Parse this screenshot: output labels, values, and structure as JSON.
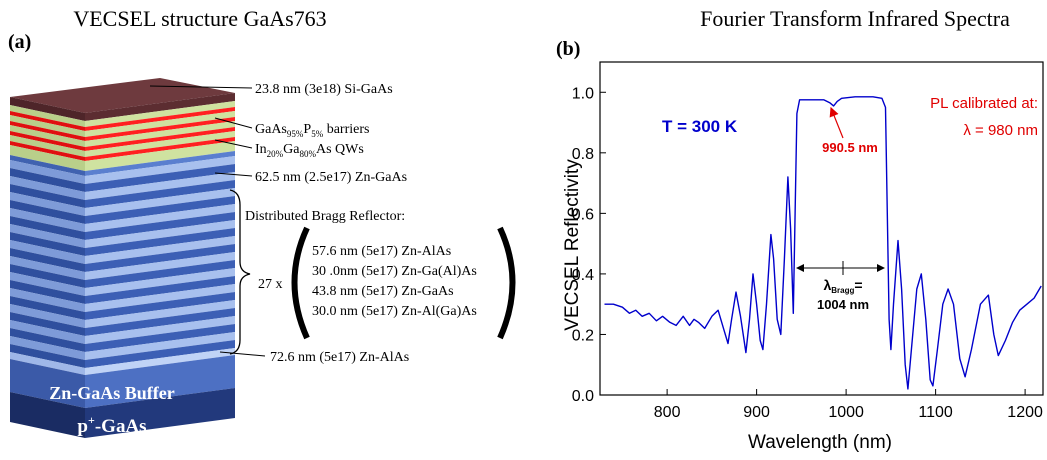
{
  "diagram": {
    "title": "VECSEL structure GaAs763",
    "panel_label": "(a)",
    "layers": {
      "cap": "23.8 nm (3e18) Si-GaAs",
      "barriers": [
        "GaAs",
        "95%",
        "P",
        "5%",
        " barriers"
      ],
      "wells": [
        "In",
        "20%",
        "Ga",
        "80%",
        "As  QWs"
      ],
      "spacer": "62.5 nm (2.5e17) Zn-GaAs",
      "dbr_title": "Distributed Bragg Reflector:",
      "dbr_repeat": "27 x",
      "dbr_period": [
        "57.6 nm (5e17) Zn-AlAs",
        "30 .0nm (5e17) Zn-Ga(Al)As",
        "43.8 nm (5e17) Zn-GaAs",
        "30.0 nm (5e17) Zn-Al(Ga)As"
      ],
      "dbr_last": "72.6 nm (5e17) Zn-AlAs",
      "buffer": "Zn-GaAs Buffer",
      "substrate": [
        "p",
        "+",
        "-GaAs"
      ]
    }
  },
  "chart_data": {
    "type": "line",
    "title": "Fourier Transform Infrared Spectra",
    "panel_label": "(b)",
    "x_label": "Wavelength (nm)",
    "y_label": "VECSEL Reflectivity",
    "annotations": {
      "temperature": "T = 300 K",
      "pl_line1": "PL calibrated at:",
      "pl_line2": "λ = 980 nm",
      "dip": "990.5 nm",
      "bragg_symbol": [
        "λ",
        "Bragg",
        "="
      ],
      "bragg_value": "1004 nm"
    },
    "xlim": [
      725,
      1220
    ],
    "ylim": [
      0,
      1.1
    ],
    "xticks": [
      800,
      900,
      1000,
      1100,
      1200
    ],
    "yticks": [
      {
        "value": 0,
        "label": "0.0"
      },
      0.2,
      0.4,
      0.6,
      0.8,
      {
        "value": 1,
        "label": "1.0"
      }
    ],
    "x": [
      730,
      740,
      750,
      758,
      765,
      772,
      780,
      788,
      795,
      803,
      810,
      818,
      825,
      830,
      835,
      842,
      850,
      857,
      863,
      868,
      872,
      877,
      882,
      888,
      892,
      896,
      900,
      904,
      907,
      911,
      916,
      919,
      923,
      927,
      931,
      935,
      938,
      941,
      943,
      945,
      948,
      960,
      975,
      982,
      986,
      990,
      995,
      1010,
      1030,
      1040,
      1044,
      1046,
      1048,
      1050,
      1053,
      1058,
      1062,
      1066,
      1069,
      1073,
      1079,
      1084,
      1089,
      1094,
      1097,
      1102,
      1108,
      1114,
      1120,
      1127,
      1133,
      1140,
      1150,
      1159,
      1165,
      1170,
      1178,
      1186,
      1194,
      1202,
      1210,
      1218
    ],
    "series": [
      {
        "color": "#0000cc",
        "values": [
          0.3,
          0.3,
          0.29,
          0.27,
          0.28,
          0.26,
          0.27,
          0.245,
          0.26,
          0.24,
          0.23,
          0.26,
          0.23,
          0.25,
          0.24,
          0.22,
          0.26,
          0.28,
          0.22,
          0.17,
          0.25,
          0.34,
          0.26,
          0.14,
          0.25,
          0.4,
          0.3,
          0.18,
          0.15,
          0.3,
          0.53,
          0.45,
          0.25,
          0.2,
          0.45,
          0.72,
          0.55,
          0.27,
          0.6,
          0.93,
          0.975,
          0.975,
          0.975,
          0.965,
          0.955,
          0.97,
          0.98,
          0.985,
          0.985,
          0.98,
          0.95,
          0.6,
          0.25,
          0.15,
          0.3,
          0.51,
          0.35,
          0.1,
          0.02,
          0.15,
          0.35,
          0.4,
          0.25,
          0.05,
          0.03,
          0.15,
          0.3,
          0.35,
          0.3,
          0.12,
          0.06,
          0.15,
          0.3,
          0.33,
          0.2,
          0.13,
          0.18,
          0.24,
          0.28,
          0.3,
          0.32,
          0.36
        ]
      }
    ],
    "grid": false
  }
}
